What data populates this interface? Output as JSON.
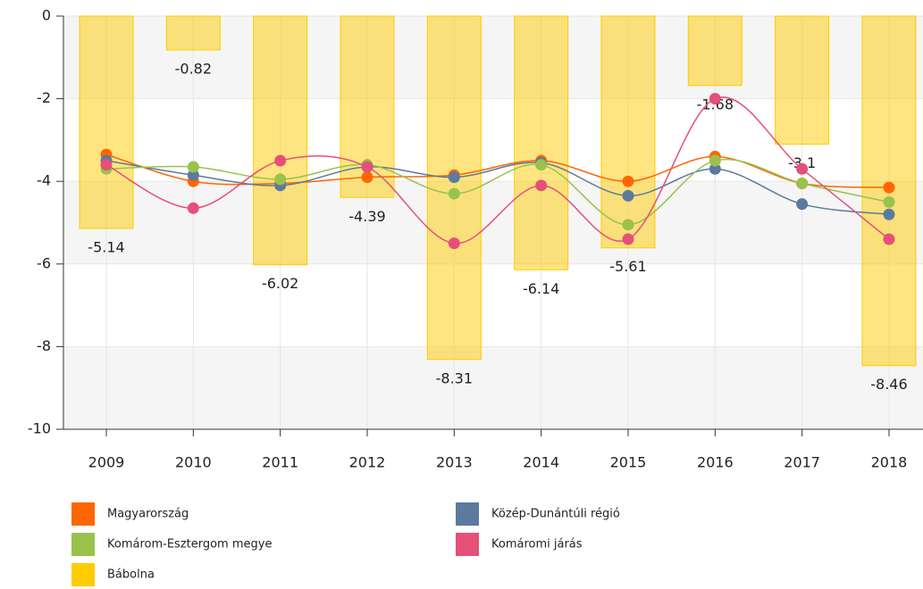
{
  "chart_data": {
    "type": "bar",
    "categories": [
      "2009",
      "2010",
      "2011",
      "2012",
      "2013",
      "2014",
      "2015",
      "2016",
      "2017",
      "2018"
    ],
    "ylim": [
      -10,
      0
    ],
    "yticks": [
      0,
      -2,
      -4,
      -6,
      -8,
      -10
    ],
    "grid": true,
    "series": [
      {
        "name": "Magyarország",
        "type": "line",
        "color": "#ff6600",
        "values": [
          -3.35,
          -4.0,
          -4.05,
          -3.9,
          -3.85,
          -3.5,
          -4.0,
          -3.4,
          -4.05,
          -4.15
        ]
      },
      {
        "name": "Közép-Dunántúli régió",
        "type": "line",
        "color": "#5b7a9e",
        "values": [
          -3.5,
          -3.85,
          -4.1,
          -3.65,
          -3.9,
          -3.55,
          -4.35,
          -3.7,
          -4.55,
          -4.8
        ]
      },
      {
        "name": "Komárom-Esztergom megye",
        "type": "line",
        "color": "#99c24d",
        "values": [
          -3.7,
          -3.65,
          -3.95,
          -3.6,
          -4.3,
          -3.6,
          -5.05,
          -3.5,
          -4.05,
          -4.5
        ]
      },
      {
        "name": "Komáromi járás",
        "type": "line",
        "color": "#e5507a",
        "values": [
          -3.6,
          -4.65,
          -3.5,
          -3.65,
          -5.5,
          -4.1,
          -5.4,
          -2.0,
          -3.7,
          -5.4
        ]
      },
      {
        "name": "Bábolna",
        "type": "bar",
        "color": "#ffcc00",
        "values": [
          -5.14,
          -0.82,
          -6.02,
          -4.39,
          -8.31,
          -6.14,
          -5.61,
          -1.68,
          -3.1,
          -8.46
        ]
      }
    ]
  }
}
